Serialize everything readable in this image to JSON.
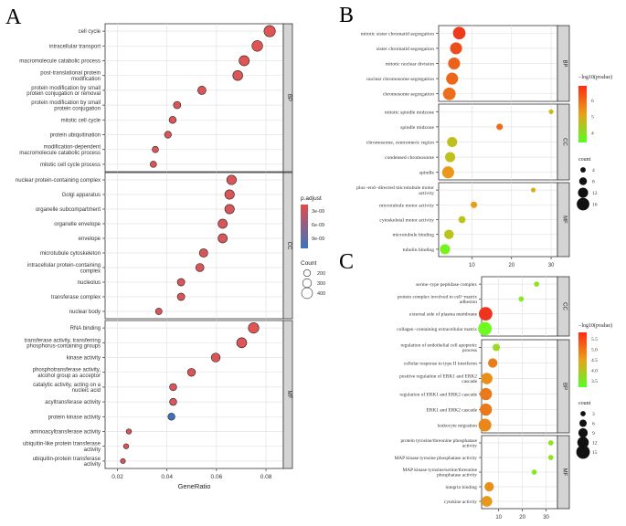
{
  "figure": {
    "label_a": "A",
    "label_b": "B",
    "label_c": "C"
  },
  "chart_data": [
    {
      "panel": "A",
      "type": "scatter",
      "xlabel": "GeneRatio",
      "xlim": [
        0.015,
        0.087
      ],
      "xticks": [
        "0.02",
        "0.04",
        "0.06",
        "0.08"
      ],
      "xtick_values": [
        0.02,
        0.04,
        0.06,
        0.08
      ],
      "color_legend": {
        "title": "p.adjust",
        "ticks": [
          "3e-09",
          "6e-09",
          "9e-09"
        ],
        "low_color": "#e24a4a",
        "high_color": "#3a75c4"
      },
      "size_legend": {
        "title": "Count",
        "labels": [
          "200",
          "300",
          "400"
        ],
        "values": [
          200,
          300,
          400
        ]
      },
      "facets": [
        {
          "name": "BP",
          "points": [
            {
              "label": "cell cycle",
              "x": 0.0815,
              "count": 420,
              "c": 0.0
            },
            {
              "label": "intracellular transport",
              "x": 0.0765,
              "count": 390,
              "c": 0.0
            },
            {
              "label": "macromolecule catabolic process",
              "x": 0.0712,
              "count": 365,
              "c": 0.0
            },
            {
              "label": "post-translational protein modification",
              "x": 0.0686,
              "count": 350,
              "c": 0.02
            },
            {
              "label": "protein modification by small protein conjugation or removal",
              "x": 0.0541,
              "count": 275,
              "c": 0.03
            },
            {
              "label": "protein modification by small protein conjugation",
              "x": 0.0441,
              "count": 225,
              "c": 0.04
            },
            {
              "label": "mitotic cell cycle",
              "x": 0.0423,
              "count": 215,
              "c": 0.03
            },
            {
              "label": "protein ubiquitination",
              "x": 0.0404,
              "count": 205,
              "c": 0.05
            },
            {
              "label": "modification-dependent macromolecule catabolic process",
              "x": 0.0353,
              "count": 180,
              "c": 0.06
            },
            {
              "label": "mitotic cell cycle process",
              "x": 0.0345,
              "count": 176,
              "c": 0.05
            }
          ]
        },
        {
          "name": "CC",
          "points": [
            {
              "label": "nuclear protein-containing complex",
              "x": 0.0661,
              "count": 335,
              "c": 0.05
            },
            {
              "label": "Golgi apparatus",
              "x": 0.0653,
              "count": 332,
              "c": 0.04
            },
            {
              "label": "organelle subcompartment",
              "x": 0.0653,
              "count": 330,
              "c": 0.06
            },
            {
              "label": "organelle envelope",
              "x": 0.0625,
              "count": 318,
              "c": 0.03
            },
            {
              "label": "envelope",
              "x": 0.0625,
              "count": 318,
              "c": 0.03
            },
            {
              "label": "microtubule cytoskeleton",
              "x": 0.0548,
              "count": 278,
              "c": 0.04
            },
            {
              "label": "intracellular protein-containing complex",
              "x": 0.0533,
              "count": 270,
              "c": 0.06
            },
            {
              "label": "nucleolus",
              "x": 0.0457,
              "count": 232,
              "c": 0.05
            },
            {
              "label": "transferase complex",
              "x": 0.0457,
              "count": 232,
              "c": 0.05
            },
            {
              "label": "nuclear body",
              "x": 0.0367,
              "count": 187,
              "c": 0.06
            }
          ]
        },
        {
          "name": "MF",
          "points": [
            {
              "label": "RNA binding",
              "x": 0.075,
              "count": 380,
              "c": 0.0
            },
            {
              "label": "transferase activity, transferring phosphorus-containing groups",
              "x": 0.0702,
              "count": 356,
              "c": 0.02
            },
            {
              "label": "kinase activity",
              "x": 0.0597,
              "count": 303,
              "c": 0.04
            },
            {
              "label": "phosphotransferase activity, alcohol group as acceptor",
              "x": 0.0499,
              "count": 253,
              "c": 0.05
            },
            {
              "label": "catalytic activity, acting on a nucleic acid",
              "x": 0.0425,
              "count": 216,
              "c": 0.06
            },
            {
              "label": "acyltransferase activity",
              "x": 0.0425,
              "count": 216,
              "c": 0.07
            },
            {
              "label": "protein kinase activity",
              "x": 0.0418,
              "count": 212,
              "c": 1.0
            },
            {
              "label": "aminoacyltransferase activity",
              "x": 0.0246,
              "count": 125,
              "c": 0.08
            },
            {
              "label": "ubiquitin-like protein transferase activity",
              "x": 0.0235,
              "count": 119,
              "c": 0.07
            },
            {
              "label": "ubiquitin-protein transferase activity",
              "x": 0.0222,
              "count": 112,
              "c": 0.08
            }
          ]
        }
      ]
    },
    {
      "panel": "B",
      "type": "scatter",
      "xlabel": "",
      "xlim": [
        1.6,
        31.6
      ],
      "xticks": [
        "10",
        "20",
        "30"
      ],
      "xtick_values": [
        10,
        20,
        30
      ],
      "color_legend": {
        "title": "−log10(pvalue)",
        "ticks": [
          "6",
          "5",
          "4"
        ],
        "tick_values": [
          6,
          5,
          4
        ],
        "range": [
          3.4,
          6.9
        ]
      },
      "size_legend": {
        "title": "count",
        "labels": [
          "4",
          "8",
          "12",
          "16"
        ],
        "values": [
          4,
          8,
          12,
          16
        ]
      },
      "facets": [
        {
          "name": "BP",
          "points": [
            {
              "label": "mitotic sister chromatid segregation",
              "x": 6.8,
              "count": 16,
              "p": 6.7
            },
            {
              "label": "sister chromatid segregation",
              "x": 6.0,
              "count": 15,
              "p": 6.4
            },
            {
              "label": "mitotic nuclear division",
              "x": 5.5,
              "count": 15,
              "p": 6.1
            },
            {
              "label": "nuclear chromosome segregation",
              "x": 5.0,
              "count": 15,
              "p": 6.0
            },
            {
              "label": "chromosome segregation",
              "x": 4.3,
              "count": 16,
              "p": 5.9
            }
          ]
        },
        {
          "name": "CC",
          "points": [
            {
              "label": "mitotic spindle midzone",
              "x": 30.0,
              "count": 3,
              "p": 4.7
            },
            {
              "label": "spindle midzone",
              "x": 17.0,
              "count": 6,
              "p": 5.9
            },
            {
              "label": "chromosome, centromeric region",
              "x": 5.0,
              "count": 12,
              "p": 4.6
            },
            {
              "label": "condensed chromosome",
              "x": 4.5,
              "count": 12,
              "p": 4.6
            },
            {
              "label": "spindle",
              "x": 4.0,
              "count": 15,
              "p": 5.3
            }
          ]
        },
        {
          "name": "MF",
          "points": [
            {
              "label": "plus−end−directed microtubule motor activity",
              "x": 25.5,
              "count": 3,
              "p": 4.9
            },
            {
              "label": "microtubule motor activity",
              "x": 10.5,
              "count": 6,
              "p": 5.2
            },
            {
              "label": "cytoskeletal motor activity",
              "x": 7.5,
              "count": 7,
              "p": 4.5
            },
            {
              "label": "microtubule binding",
              "x": 4.2,
              "count": 11,
              "p": 4.5
            },
            {
              "label": "tubulin binding",
              "x": 3.2,
              "count": 12,
              "p": 3.6
            }
          ]
        }
      ]
    },
    {
      "panel": "C",
      "type": "scatter",
      "xlabel": "",
      "xlim": [
        2.8,
        34.8
      ],
      "xticks": [
        "10",
        "20",
        "30"
      ],
      "xtick_values": [
        10,
        20,
        30
      ],
      "color_legend": {
        "title": "−log10(pvalue)",
        "ticks": [
          "5.5",
          "5.0",
          "4.5",
          "4.0",
          "3.5"
        ],
        "tick_values": [
          5.5,
          5.0,
          4.5,
          4.0,
          3.5
        ],
        "range": [
          3.2,
          5.8
        ]
      },
      "size_legend": {
        "title": "count",
        "labels": [
          "3",
          "6",
          "9",
          "12",
          "15"
        ],
        "values": [
          3,
          6,
          9,
          12,
          15
        ]
      },
      "facets": [
        {
          "name": "CC",
          "points": [
            {
              "label": "serine−type peptidase complex",
              "x": 26.0,
              "count": 3,
              "p": 3.6
            },
            {
              "label": "protein complex involved in cell−matrix adhesion",
              "x": 19.5,
              "count": 3,
              "p": 3.5
            },
            {
              "label": "external side of plasma membrane",
              "x": 4.5,
              "count": 15,
              "p": 5.7
            },
            {
              "label": "collagen−containing extracellular matrix",
              "x": 4.2,
              "count": 15,
              "p": 3.3
            }
          ]
        },
        {
          "name": "BP",
          "points": [
            {
              "label": "regulation of endothelial cell apoptotic process",
              "x": 9.0,
              "count": 6,
              "p": 3.7
            },
            {
              "label": "cellular response to type II interferon",
              "x": 7.5,
              "count": 9,
              "p": 4.9
            },
            {
              "label": "positive regulation of ERK1 and ERK2 cascade",
              "x": 5.0,
              "count": 12,
              "p": 4.7
            },
            {
              "label": "regulation of ERK1 and ERK2 cascade",
              "x": 4.6,
              "count": 13,
              "p": 4.95
            },
            {
              "label": "ERK1 and ERK2 cascade",
              "x": 4.6,
              "count": 13,
              "p": 4.95
            },
            {
              "label": "leukocyte migration",
              "x": 4.2,
              "count": 14,
              "p": 4.8
            }
          ]
        },
        {
          "name": "MF",
          "points": [
            {
              "label": "protein tyrosine/threonine phosphatase activity",
              "x": 32.0,
              "count": 3,
              "p": 3.6
            },
            {
              "label": "MAP kinase tyrosine phosphatase activity",
              "x": 32.0,
              "count": 3,
              "p": 3.6
            },
            {
              "label": "MAP kinase tyrosine/serine/threonine phosphatase activity",
              "x": 25.0,
              "count": 3,
              "p": 3.5
            },
            {
              "label": "integrin binding",
              "x": 6.0,
              "count": 9,
              "p": 4.7
            },
            {
              "label": "cytokine activity",
              "x": 5.0,
              "count": 11,
              "p": 4.6
            }
          ]
        }
      ]
    }
  ]
}
